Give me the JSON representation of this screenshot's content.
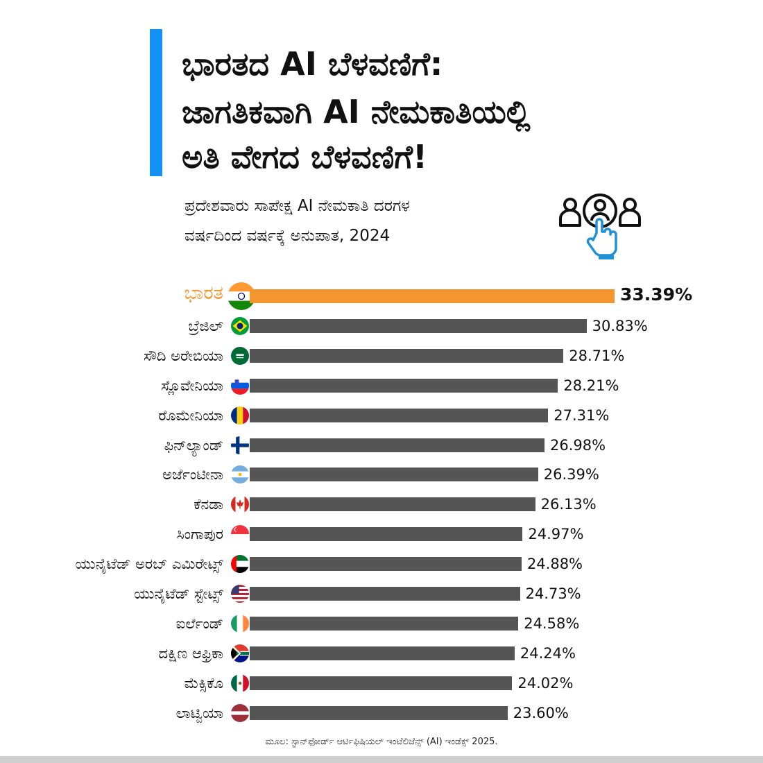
{
  "title_lines": [
    "ಭಾರತದ AI ಬೆಳವಣಿಗೆ:",
    "ಜಾಗತಿಕವಾಗಿ AI ನೇಮಕಾತಿಯಲ್ಲಿ",
    "ಅತಿ ವೇಗದ ಬೆಳವಣಿಗೆ!"
  ],
  "subtitle_lines": [
    "ಪ್ರದೇಶವಾರು ಸಾಪೇಕ್ಷ AI ನೇಮಕಾತಿ ದರಗಳ",
    "ವರ್ಷದಿಂದ ವರ್ಷಕ್ಕೆ ಅನುಪಾತ, 2024"
  ],
  "icon": "people-hand-pointer-icon",
  "source": "ಮೂಲ: ಸ್ಟಾನ್‌ಫೋರ್ಡ್ ಆರ್ಟಿಫಿಷಿಯಲ್ ಇಂಟೆಲಿಜೆನ್ಸ್ (AI) ಇಂಡೆಕ್ಸ್ 2025.",
  "colors": {
    "accent": "#1493f5",
    "highlight": "#f4962e",
    "bar": "#555555",
    "icon_blue": "#1f8fd6"
  },
  "chart_data": {
    "type": "bar",
    "orientation": "horizontal",
    "highlight_index": 0,
    "categories": [
      "ಭಾರತ",
      "ಬ್ರೆಜಿಲ್",
      "ಸೌದಿ ಅರೇಬಿಯಾ",
      "ಸ್ಲೊವೇನಿಯಾ",
      "ರೊಮೇನಿಯಾ",
      "ಫಿನ್‌ಲ್ಯಾಂಡ್",
      "ಅರ್ಜೆಂಟೀನಾ",
      "ಕೆನಡಾ",
      "ಸಿಂಗಾಪುರ",
      "ಯುನೈಟೆಡ್ ಅರಬ್ ಎಮಿರೇಟ್ಸ್",
      "ಯುನೈಟೆಡ್ ಸ್ಟೇಟ್ಸ್",
      "ಐರ್ಲೆಂಡ್",
      "ದಕ್ಷಿಣ ಆಫ್ರಿಕಾ",
      "ಮೆಕ್ಸಿಕೊ",
      "ಲಾಟ್ವಿಯಾ"
    ],
    "values": [
      33.39,
      30.83,
      28.71,
      28.21,
      27.31,
      26.98,
      26.39,
      26.13,
      24.97,
      24.88,
      24.73,
      24.58,
      24.24,
      24.02,
      23.6
    ],
    "value_labels": [
      "33.39%",
      "30.83%",
      "28.71%",
      "28.21%",
      "27.31%",
      "26.98%",
      "26.39%",
      "26.13%",
      "24.97%",
      "24.88%",
      "24.73%",
      "24.58%",
      "24.24%",
      "24.02%",
      "23.60%"
    ],
    "flags": [
      "india",
      "brazil",
      "saudi-arabia",
      "slovenia",
      "romania",
      "finland",
      "argentina",
      "canada",
      "singapore",
      "uae",
      "usa",
      "ireland",
      "south-africa",
      "mexico",
      "latvia"
    ],
    "title": "",
    "xlabel": "",
    "ylabel": "",
    "grid": false
  }
}
